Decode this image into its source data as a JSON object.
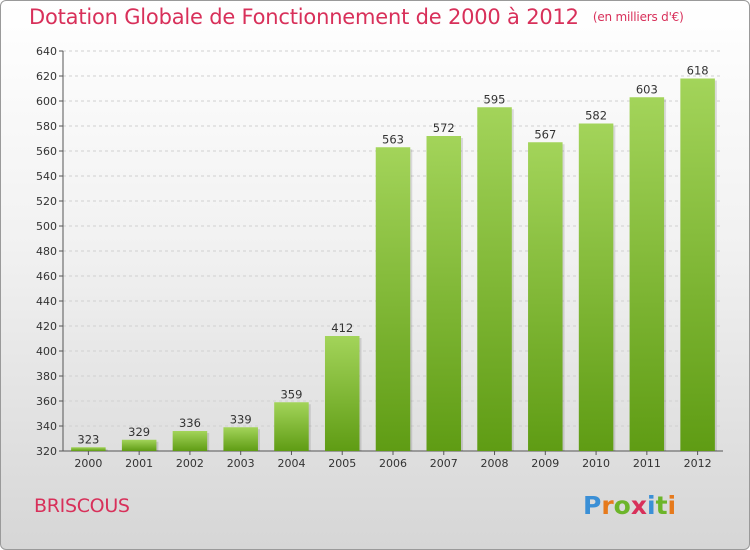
{
  "title": "Dotation Globale de Fonctionnement de 2000 à 2012",
  "unit": "(en milliers d'€)",
  "commune": "BRISCOUS",
  "logo": {
    "text": "Proxiti",
    "letters": [
      "P",
      "r",
      "o",
      "x",
      "i",
      "t",
      "i"
    ],
    "colors": [
      "#3a8fd6",
      "#e67a1c",
      "#6cb52a",
      "#d8305a",
      "#3a8fd6",
      "#6cb52a",
      "#e67a1c"
    ]
  },
  "colors": {
    "title": "#d8305a",
    "bar_top": "#a3d45a",
    "bar_bottom": "#5f9c14"
  },
  "chart_data": {
    "type": "bar",
    "categories": [
      "2000",
      "2001",
      "2002",
      "2003",
      "2004",
      "2005",
      "2006",
      "2007",
      "2008",
      "2009",
      "2010",
      "2011",
      "2012"
    ],
    "values": [
      323,
      329,
      336,
      339,
      359,
      412,
      563,
      572,
      595,
      567,
      582,
      603,
      618
    ],
    "ylim": [
      320,
      640
    ],
    "yticks": [
      320,
      340,
      360,
      380,
      400,
      420,
      440,
      460,
      480,
      500,
      520,
      540,
      560,
      580,
      600,
      620,
      640
    ],
    "grid": true
  }
}
